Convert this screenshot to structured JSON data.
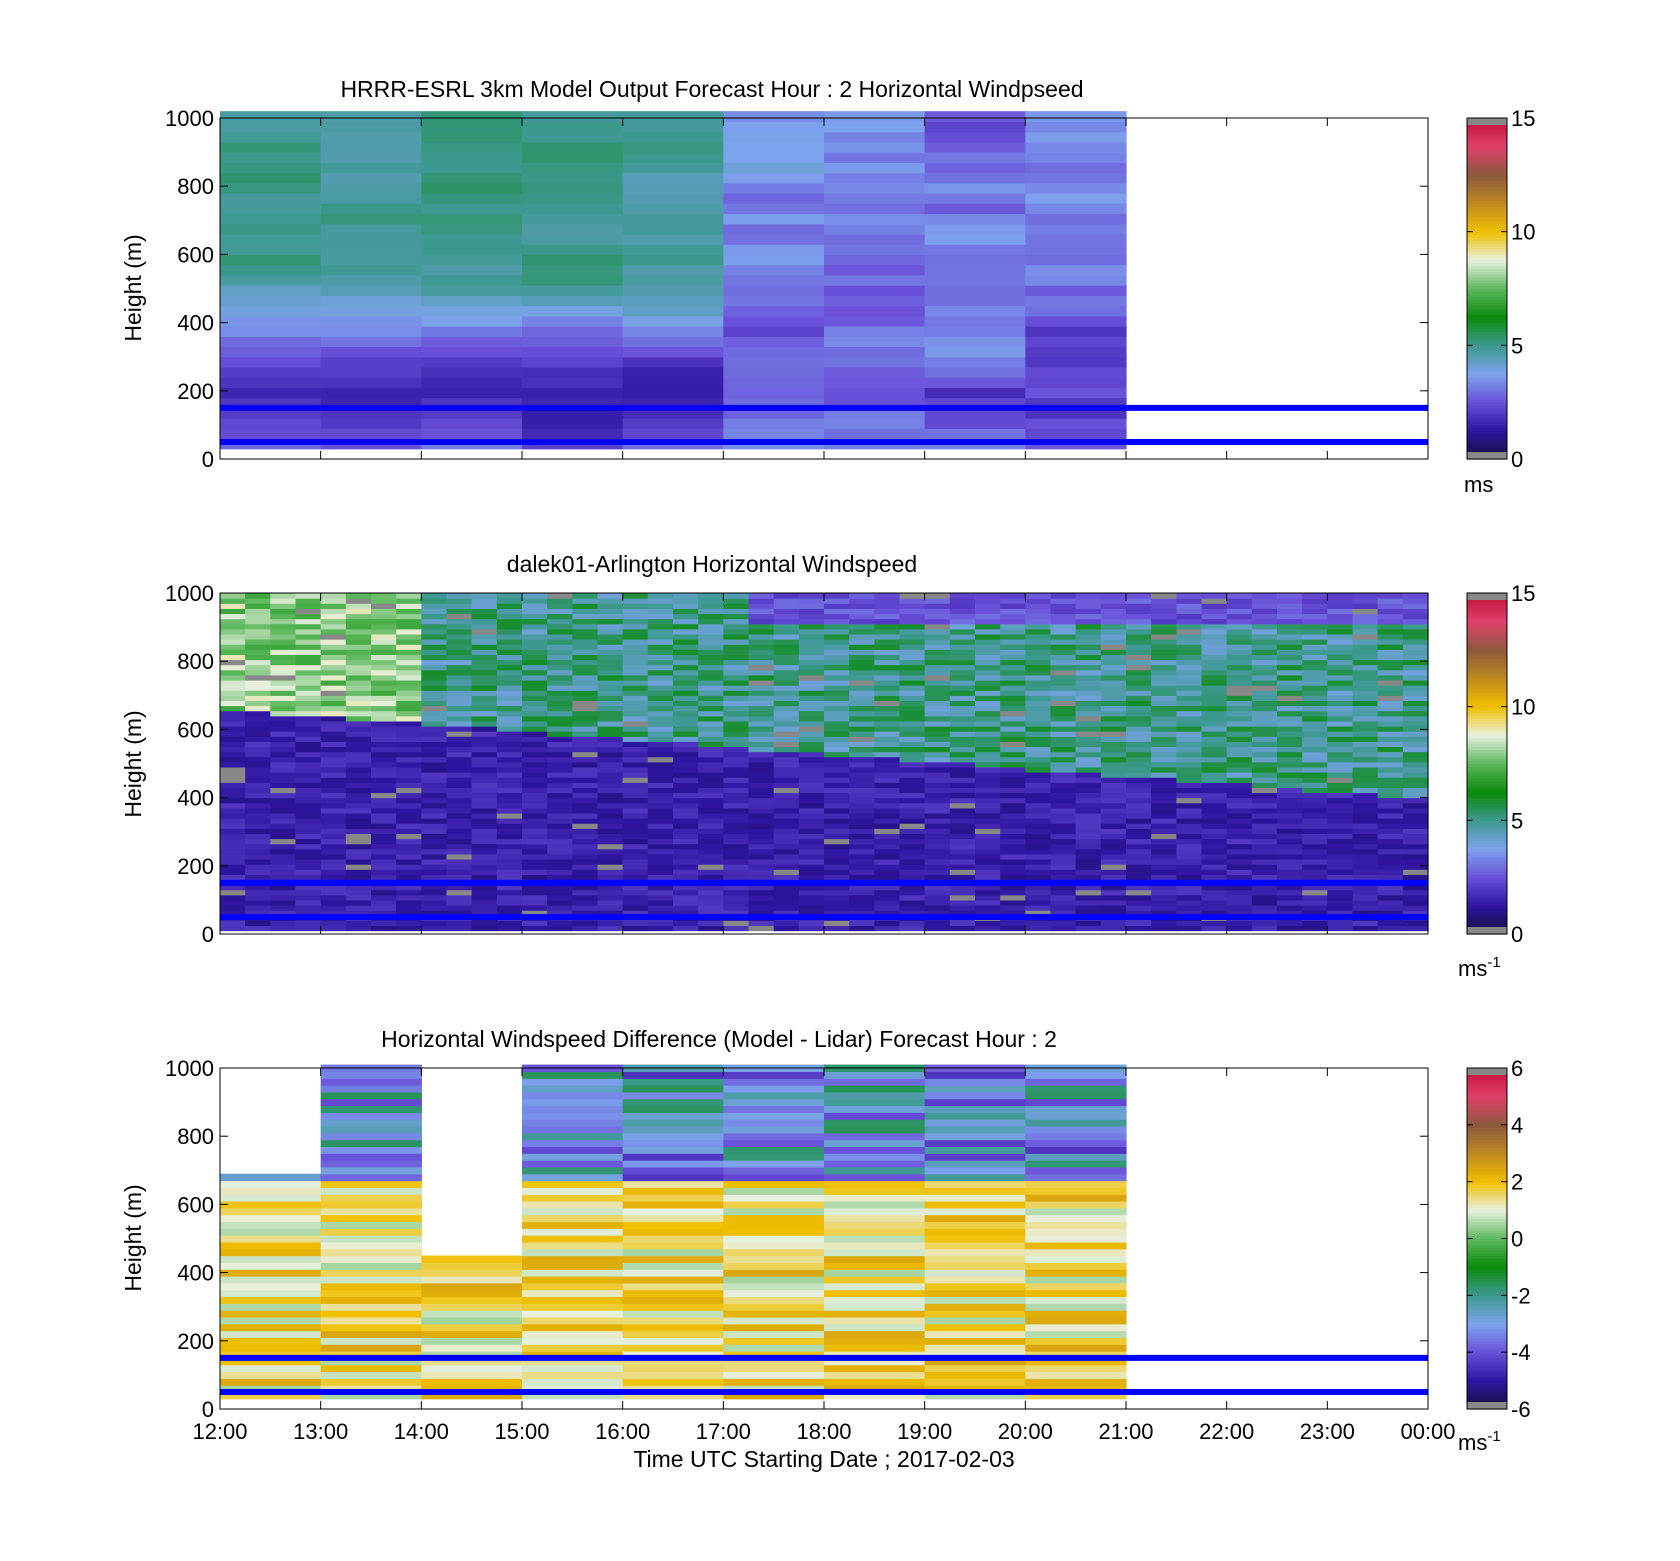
{
  "chart_data": [
    {
      "type": "heatmap",
      "title": "HRRR-ESRL 3km Model Output   Forecast Hour : 2 Horizontal Windpseed",
      "xlabel": "",
      "ylabel": "Height (m)",
      "ylim": [
        0,
        1000
      ],
      "yticks": [
        "0",
        "200",
        "400",
        "600",
        "800",
        "1000"
      ],
      "xlim": [
        "12:00",
        "00:00"
      ],
      "colorbar": {
        "range": [
          0,
          15
        ],
        "ticks": [
          "0",
          "5",
          "10",
          "15"
        ],
        "unit": "ms",
        "unit_sup": ""
      },
      "reference_heights": [
        150,
        50
      ],
      "data_end_hour": 21,
      "grid": false
    },
    {
      "type": "heatmap",
      "title": "dalek01-Arlington  Horizontal Windspeed",
      "xlabel": "",
      "ylabel": "Height (m)",
      "ylim": [
        0,
        1000
      ],
      "yticks": [
        "0",
        "200",
        "400",
        "600",
        "800",
        "1000"
      ],
      "xlim": [
        "12:00",
        "00:00"
      ],
      "colorbar": {
        "range": [
          0,
          15
        ],
        "ticks": [
          "0",
          "5",
          "10",
          "15"
        ],
        "unit": "ms",
        "unit_sup": "-1"
      },
      "reference_heights": [
        150,
        50
      ],
      "data_end_hour": 23.8,
      "grid": false
    },
    {
      "type": "heatmap",
      "title": "Horizontal Windspeed Difference (Model - Lidar) Forecast Hour : 2",
      "xlabel": "Time UTC  Starting Date ; 2017-02-03",
      "ylabel": "Height (m)",
      "ylim": [
        0,
        1000
      ],
      "yticks": [
        "0",
        "200",
        "400",
        "600",
        "800",
        "1000"
      ],
      "xticks": [
        "12:00",
        "13:00",
        "14:00",
        "15:00",
        "16:00",
        "17:00",
        "18:00",
        "19:00",
        "20:00",
        "21:00",
        "22:00",
        "23:00",
        "00:00"
      ],
      "colorbar": {
        "range": [
          -6,
          6
        ],
        "ticks": [
          "-6",
          "-4",
          "-2",
          "0",
          "2",
          "4",
          "6"
        ],
        "unit": "ms",
        "unit_sup": "-1"
      },
      "reference_heights": [
        150,
        50
      ],
      "data_end_hour": 21,
      "grid": false
    }
  ],
  "colors": {
    "reference_line": "#0000ff",
    "colormap_speed": [
      "#16103a",
      "#2e14a0",
      "#6a4fd8",
      "#7da3ee",
      "#3d9990",
      "#0b8a0b",
      "#5cb85c",
      "#e8f0e0",
      "#f0c000",
      "#c08a20",
      "#8b5a3c",
      "#e0406a",
      "#c0103a"
    ],
    "missing": "#ffffff",
    "flagged": "#888888"
  }
}
